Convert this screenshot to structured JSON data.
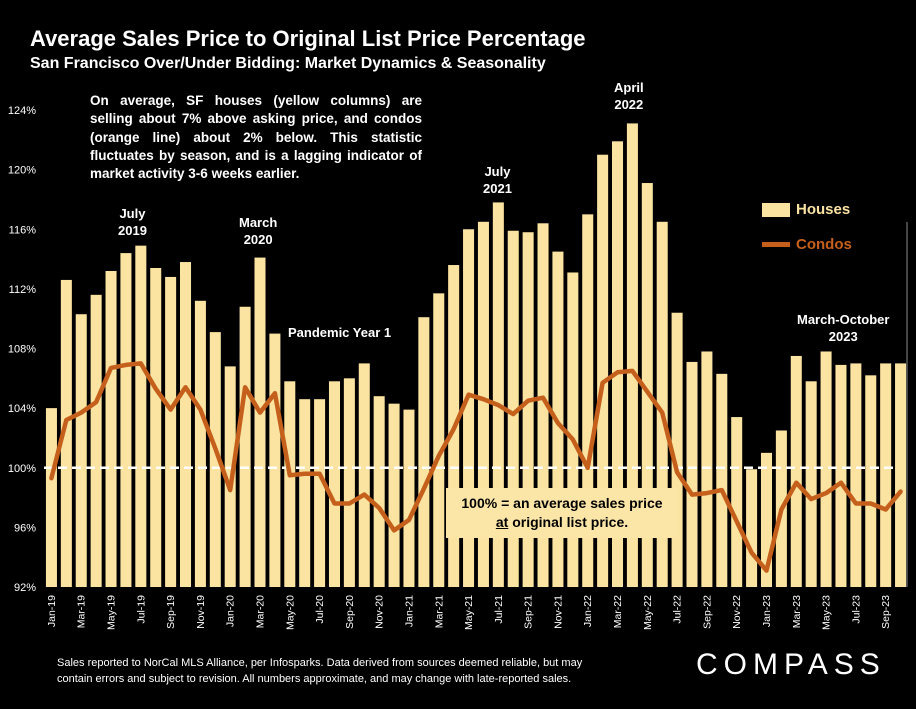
{
  "title": "Average Sales Price to Original List Price Percentage",
  "subtitle": "San Francisco Over/Under Bidding: Market Dynamics & Seasonality",
  "commentary": "On average, SF houses (yellow columns) are selling about 7% above asking price, and condos (orange line) about 2% below. This statistic fluctuates by season, and is a lagging indicator of market activity 3-6 weeks earlier.",
  "annotations": {
    "july2019": {
      "line1": "July",
      "line2": "2019"
    },
    "march2020": {
      "line1": "March",
      "line2": "2020"
    },
    "pandemic": "Pandemic Year 1",
    "july2021": {
      "line1": "July",
      "line2": "2021"
    },
    "april2022": {
      "line1": "April",
      "line2": "2022"
    },
    "marchoct2023": {
      "line1": "March-October",
      "line2": "2023"
    }
  },
  "note_box": {
    "line1": "100% = an average sales price",
    "line2_underlined": "at",
    "line2_rest": " original list price."
  },
  "footnote": {
    "line1": "Sales reported to NorCal MLS Alliance, per Infosparks. Data derived from sources deemed reliable, but may",
    "line2": "contain errors and subject to revision. All numbers approximate, and may change with late-reported sales."
  },
  "brand": "COMPASS",
  "colors": {
    "background": "#000000",
    "houses": "#fbe3a1",
    "condos": "#c5601c",
    "reference_line": "#ffffff",
    "note_box": "#fbe6a8"
  },
  "chart_data": {
    "type": "bar",
    "y_unit": "percent",
    "ylim": [
      92,
      124
    ],
    "y_ticks": [
      "92%",
      "96%",
      "100%",
      "104%",
      "108%",
      "112%",
      "116%",
      "120%",
      "124%"
    ],
    "y_tick_values": [
      92,
      96,
      100,
      104,
      108,
      112,
      116,
      120,
      124
    ],
    "x_tick_labels": [
      "Jan-19",
      "Mar-19",
      "May-19",
      "Jul-19",
      "Sep-19",
      "Nov-19",
      "Jan-20",
      "Mar-20",
      "May-20",
      "Jul-20",
      "Sep-20",
      "Nov-20",
      "Jan-21",
      "Mar-21",
      "May-21",
      "Jul-21",
      "Sep-21",
      "Nov-21",
      "Jan-22",
      "Mar-22",
      "May-22",
      "Jul-22",
      "Sep-22",
      "Nov-22",
      "Jan-23",
      "Mar-23",
      "May-23",
      "Jul-23",
      "Sep-23"
    ],
    "x_tick_every": 2,
    "reference_line": 100,
    "grid": false,
    "legend_position": "right",
    "categories": [
      "Jan-19",
      "Feb-19",
      "Mar-19",
      "Apr-19",
      "May-19",
      "Jun-19",
      "Jul-19",
      "Aug-19",
      "Sep-19",
      "Oct-19",
      "Nov-19",
      "Dec-19",
      "Jan-20",
      "Feb-20",
      "Mar-20",
      "Apr-20",
      "May-20",
      "Jun-20",
      "Jul-20",
      "Aug-20",
      "Sep-20",
      "Oct-20",
      "Nov-20",
      "Dec-20",
      "Jan-21",
      "Feb-21",
      "Mar-21",
      "Apr-21",
      "May-21",
      "Jun-21",
      "Jul-21",
      "Aug-21",
      "Sep-21",
      "Oct-21",
      "Nov-21",
      "Dec-21",
      "Jan-22",
      "Feb-22",
      "Mar-22",
      "Apr-22",
      "May-22",
      "Jun-22",
      "Jul-22",
      "Aug-22",
      "Sep-22",
      "Oct-22",
      "Nov-22",
      "Dec-22",
      "Jan-23",
      "Feb-23",
      "Mar-23",
      "Apr-23",
      "May-23",
      "Jun-23",
      "Jul-23",
      "Aug-23",
      "Sep-23",
      "Oct-23"
    ],
    "series": [
      {
        "name": "Houses",
        "type": "bar",
        "values": [
          104.0,
          112.6,
          110.3,
          111.6,
          113.2,
          114.4,
          114.9,
          113.4,
          112.8,
          113.8,
          111.2,
          109.1,
          106.8,
          110.8,
          114.1,
          109.0,
          105.8,
          104.6,
          104.6,
          105.8,
          106.0,
          107.0,
          104.8,
          104.3,
          103.9,
          110.1,
          111.7,
          113.6,
          116.0,
          116.5,
          117.8,
          115.9,
          115.8,
          116.4,
          114.5,
          113.1,
          117.0,
          121.0,
          121.9,
          123.1,
          119.1,
          116.5,
          110.4,
          107.1,
          107.8,
          106.3,
          103.4,
          99.9,
          101.0,
          102.5,
          107.5,
          105.8,
          107.8,
          106.9,
          107.0,
          106.2,
          107.0,
          107.0
        ]
      },
      {
        "name": "Condos",
        "type": "line",
        "values": [
          99.3,
          103.2,
          103.7,
          104.4,
          106.7,
          106.9,
          107.0,
          105.3,
          103.9,
          105.4,
          103.9,
          101.3,
          98.5,
          105.4,
          103.7,
          105.0,
          99.5,
          99.6,
          99.6,
          97.6,
          97.6,
          98.2,
          97.3,
          95.8,
          96.5,
          98.6,
          100.8,
          102.6,
          104.9,
          104.6,
          104.2,
          103.6,
          104.5,
          104.7,
          103.0,
          101.9,
          100.0,
          105.7,
          106.4,
          106.5,
          105.1,
          103.7,
          99.7,
          98.2,
          98.3,
          98.5,
          96.4,
          94.3,
          93.1,
          97.2,
          99.0,
          97.9,
          98.3,
          99.0,
          97.6,
          97.6,
          97.2,
          98.4
        ]
      }
    ]
  }
}
